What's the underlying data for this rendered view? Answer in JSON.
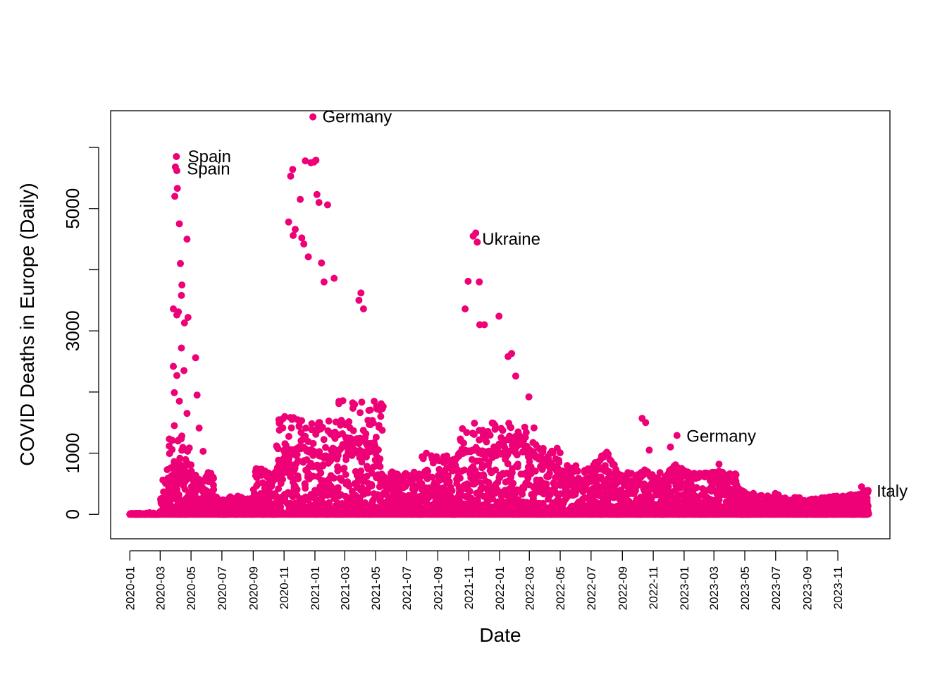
{
  "chart_data": {
    "type": "scatter",
    "title": "",
    "xlabel": "Date",
    "ylabel": "COVID Deaths in Europe (Daily)",
    "xlim": [
      "2019-11-24",
      "2024-02-12"
    ],
    "ylim": [
      -400,
      6600
    ],
    "grid": false,
    "legend": "none",
    "point_color": "#EE0077",
    "x_ticks": [
      "2020-01",
      "2020-03",
      "2020-05",
      "2020-07",
      "2020-09",
      "2020-11",
      "2021-01",
      "2021-03",
      "2021-05",
      "2021-07",
      "2021-09",
      "2021-11",
      "2022-01",
      "2022-03",
      "2022-05",
      "2022-07",
      "2022-09",
      "2022-11",
      "2023-01",
      "2023-03",
      "2023-05",
      "2023-07",
      "2023-09",
      "2023-11"
    ],
    "y_ticks": [
      0,
      1000,
      3000,
      5000
    ],
    "y_minor_ticks": [
      2000,
      4000,
      6000
    ],
    "annotations": [
      {
        "label": "Spain",
        "x": "2020-04-08",
        "y": 5850
      },
      {
        "label": "Spain",
        "x": "2020-04-06",
        "y": 5650
      },
      {
        "label": "Germany",
        "x": "2020-12-30",
        "y": 6500
      },
      {
        "label": "Ukraine",
        "x": "2021-11-11",
        "y": 4500
      },
      {
        "label": "Germany",
        "x": "2022-12-20",
        "y": 1280
      },
      {
        "label": "Italy",
        "x": "2023-12-31",
        "y": 380
      }
    ],
    "highlight_points": [
      {
        "x": "2020-04-02",
        "y": 5850
      },
      {
        "x": "2020-03-31",
        "y": 5680
      },
      {
        "x": "2020-04-03",
        "y": 5620
      },
      {
        "x": "2020-04-04",
        "y": 5330
      },
      {
        "x": "2020-03-30",
        "y": 5200
      },
      {
        "x": "2020-04-08",
        "y": 4750
      },
      {
        "x": "2020-04-23",
        "y": 4500
      },
      {
        "x": "2020-04-10",
        "y": 4100
      },
      {
        "x": "2020-04-13",
        "y": 3750
      },
      {
        "x": "2020-04-12",
        "y": 3580
      },
      {
        "x": "2020-03-27",
        "y": 3360
      },
      {
        "x": "2020-04-06",
        "y": 3310
      },
      {
        "x": "2020-04-03",
        "y": 3260
      },
      {
        "x": "2020-04-25",
        "y": 3220
      },
      {
        "x": "2020-04-18",
        "y": 3130
      },
      {
        "x": "2020-04-12",
        "y": 2720
      },
      {
        "x": "2020-05-10",
        "y": 2560
      },
      {
        "x": "2020-03-27",
        "y": 2420
      },
      {
        "x": "2020-04-17",
        "y": 2350
      },
      {
        "x": "2020-04-03",
        "y": 2270
      },
      {
        "x": "2020-05-13",
        "y": 1950
      },
      {
        "x": "2020-03-29",
        "y": 1990
      },
      {
        "x": "2020-04-08",
        "y": 1850
      },
      {
        "x": "2020-04-23",
        "y": 1650
      },
      {
        "x": "2020-03-29",
        "y": 1450
      },
      {
        "x": "2020-05-17",
        "y": 1410
      },
      {
        "x": "2020-03-25",
        "y": 1210
      },
      {
        "x": "2020-04-05",
        "y": 1200
      },
      {
        "x": "2020-05-25",
        "y": 1030
      },
      {
        "x": "2020-12-28",
        "y": 6500
      },
      {
        "x": "2020-12-13",
        "y": 5780
      },
      {
        "x": "2020-12-24",
        "y": 5750
      },
      {
        "x": "2020-12-30",
        "y": 5760
      },
      {
        "x": "2021-01-03",
        "y": 5790
      },
      {
        "x": "2020-11-18",
        "y": 5640
      },
      {
        "x": "2020-11-14",
        "y": 5530
      },
      {
        "x": "2020-12-03",
        "y": 5150
      },
      {
        "x": "2021-01-05",
        "y": 5230
      },
      {
        "x": "2021-01-09",
        "y": 5100
      },
      {
        "x": "2021-01-26",
        "y": 5060
      },
      {
        "x": "2020-11-10",
        "y": 4780
      },
      {
        "x": "2020-11-23",
        "y": 4660
      },
      {
        "x": "2020-11-19",
        "y": 4560
      },
      {
        "x": "2020-12-06",
        "y": 4520
      },
      {
        "x": "2020-12-10",
        "y": 4420
      },
      {
        "x": "2020-12-19",
        "y": 4210
      },
      {
        "x": "2021-01-14",
        "y": 4110
      },
      {
        "x": "2021-02-08",
        "y": 3860
      },
      {
        "x": "2021-01-19",
        "y": 3800
      },
      {
        "x": "2021-04-02",
        "y": 3620
      },
      {
        "x": "2021-03-29",
        "y": 3500
      },
      {
        "x": "2021-04-07",
        "y": 3360
      },
      {
        "x": "2021-11-10",
        "y": 4550
      },
      {
        "x": "2021-11-15",
        "y": 4600
      },
      {
        "x": "2021-11-18",
        "y": 4450
      },
      {
        "x": "2021-10-31",
        "y": 3810
      },
      {
        "x": "2021-11-22",
        "y": 3800
      },
      {
        "x": "2021-10-25",
        "y": 3360
      },
      {
        "x": "2021-12-31",
        "y": 3240
      },
      {
        "x": "2021-11-23",
        "y": 3100
      },
      {
        "x": "2021-12-02",
        "y": 3100
      },
      {
        "x": "2022-01-25",
        "y": 2630
      },
      {
        "x": "2022-01-18",
        "y": 2580
      },
      {
        "x": "2022-02-02",
        "y": 2260
      },
      {
        "x": "2022-02-28",
        "y": 1920
      },
      {
        "x": "2022-10-10",
        "y": 1570
      },
      {
        "x": "2022-10-17",
        "y": 1500
      },
      {
        "x": "2022-12-18",
        "y": 1290
      },
      {
        "x": "2022-10-24",
        "y": 1050
      },
      {
        "x": "2022-12-05",
        "y": 1100
      },
      {
        "x": "2023-03-11",
        "y": 820
      },
      {
        "x": "2023-12-31",
        "y": 390
      },
      {
        "x": "2023-12-18",
        "y": 450
      }
    ],
    "bulk_cloud": [
      {
        "start": "2020-01-01",
        "end": "2020-03-01",
        "low": 0,
        "high": 20
      },
      {
        "start": "2020-03-01",
        "end": "2020-03-15",
        "low": 0,
        "high": 600
      },
      {
        "start": "2020-03-15",
        "end": "2020-05-01",
        "low": 0,
        "high": 1300
      },
      {
        "start": "2020-05-01",
        "end": "2020-06-15",
        "low": 0,
        "high": 700
      },
      {
        "start": "2020-06-15",
        "end": "2020-09-01",
        "low": 0,
        "high": 300
      },
      {
        "start": "2020-09-01",
        "end": "2020-10-15",
        "low": 0,
        "high": 800
      },
      {
        "start": "2020-10-15",
        "end": "2021-02-15",
        "low": 0,
        "high": 1600
      },
      {
        "start": "2021-02-15",
        "end": "2021-05-15",
        "low": 0,
        "high": 1900
      },
      {
        "start": "2021-05-15",
        "end": "2021-08-01",
        "low": 0,
        "high": 700
      },
      {
        "start": "2021-08-01",
        "end": "2021-10-15",
        "low": 0,
        "high": 1000
      },
      {
        "start": "2021-10-15",
        "end": "2022-03-15",
        "low": 0,
        "high": 1500
      },
      {
        "start": "2022-03-15",
        "end": "2022-05-01",
        "low": 0,
        "high": 1100
      },
      {
        "start": "2022-05-01",
        "end": "2022-08-15",
        "low": 0,
        "high": 800
      },
      {
        "start": "2022-08-15",
        "end": "2022-12-31",
        "low": 0,
        "high": 700
      },
      {
        "start": "2022-12-31",
        "end": "2023-04-15",
        "low": 0,
        "high": 700
      },
      {
        "start": "2023-04-15",
        "end": "2023-07-15",
        "low": 0,
        "high": 350
      },
      {
        "start": "2023-07-15",
        "end": "2023-12-31",
        "low": 0,
        "high": 280
      }
    ],
    "trend_x": [
      "2020-01-01",
      "2020-03-01",
      "2020-03-20",
      "2020-04-10",
      "2020-05-10",
      "2020-06-10",
      "2020-07-10",
      "2020-08-15",
      "2020-09-15",
      "2020-10-10",
      "2020-11-05",
      "2020-12-01",
      "2021-01-01",
      "2021-02-01",
      "2021-03-01",
      "2021-04-01",
      "2021-05-01",
      "2021-05-20",
      "2021-06-15",
      "2021-07-15",
      "2021-08-15",
      "2021-09-15",
      "2021-10-15",
      "2021-11-10",
      "2021-12-10",
      "2022-01-15",
      "2022-02-15",
      "2022-03-15",
      "2022-04-15",
      "2022-05-15",
      "2022-06-15",
      "2022-07-10",
      "2022-08-01",
      "2022-08-25",
      "2022-09-20",
      "2022-10-15",
      "2022-11-15",
      "2022-12-15",
      "2023-01-15",
      "2023-02-15",
      "2023-03-15",
      "2023-04-15",
      "2023-05-15",
      "2023-06-15",
      "2023-07-10",
      "2023-08-15",
      "2023-09-15",
      "2023-10-15",
      "2023-11-15",
      "2023-12-15",
      "2023-12-31"
    ],
    "trend_y": [
      0,
      0,
      300,
      800,
      500,
      300,
      150,
      80,
      250,
      600,
      1000,
      1100,
      1000,
      900,
      1150,
      1250,
      1000,
      500,
      320,
      220,
      350,
      700,
      1000,
      1050,
      1000,
      1000,
      1150,
      950,
      800,
      550,
      420,
      850,
      1000,
      650,
      500,
      720,
      520,
      800,
      620,
      640,
      700,
      450,
      250,
      150,
      80,
      120,
      220,
      260,
      280,
      320,
      380
    ]
  }
}
